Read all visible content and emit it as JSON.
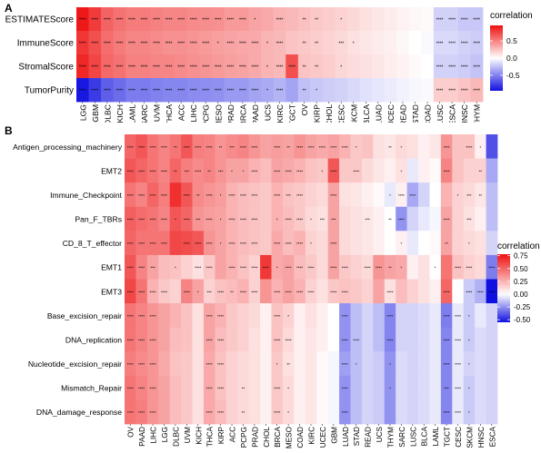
{
  "chart_data": [
    {
      "type": "heatmap",
      "panel_label": "A",
      "rows": [
        "ESTIMATEScore",
        "ImmuneScore",
        "StromalScore",
        "TumorPurity"
      ],
      "columns": [
        "LGG",
        "GBM",
        "DLBC",
        "KICH",
        "LAML",
        "SARC",
        "UVM",
        "THCA",
        "ACC",
        "LIHC",
        "PCPG",
        "MESO",
        "PRAD",
        "BRCA",
        "PAAD",
        "UCS",
        "KIRC",
        "TGCT",
        "OV",
        "KIRP",
        "CHOL",
        "CESC",
        "SKCM",
        "BLCA",
        "LUAD",
        "UCEC",
        "READ",
        "STAD",
        "COAD",
        "LUSC",
        "ESCA",
        "HNSC",
        "THYM"
      ],
      "values": [
        [
          0.92,
          0.78,
          0.62,
          0.56,
          0.52,
          0.52,
          0.5,
          0.48,
          0.48,
          0.46,
          0.45,
          0.44,
          0.4,
          0.4,
          0.36,
          0.34,
          0.3,
          0.28,
          0.25,
          0.22,
          0.2,
          0.18,
          0.15,
          0.12,
          0.1,
          0.08,
          0.05,
          0.03,
          0.02,
          -0.18,
          -0.18,
          -0.22,
          -0.22
        ],
        [
          0.8,
          0.7,
          0.58,
          0.52,
          0.48,
          0.48,
          0.46,
          0.44,
          0.44,
          0.42,
          0.4,
          0.38,
          0.36,
          0.35,
          0.34,
          0.3,
          0.28,
          0.24,
          0.22,
          0.2,
          0.18,
          0.15,
          0.12,
          0.1,
          0.08,
          0.06,
          0.03,
          0.0,
          -0.02,
          -0.15,
          -0.15,
          -0.18,
          -0.2
        ],
        [
          0.86,
          0.74,
          0.6,
          0.56,
          0.5,
          0.5,
          0.48,
          0.48,
          0.46,
          0.44,
          0.42,
          0.4,
          0.38,
          0.36,
          0.34,
          0.3,
          0.28,
          0.7,
          0.24,
          0.22,
          0.2,
          0.16,
          0.14,
          0.12,
          0.1,
          0.07,
          0.05,
          0.02,
          0.0,
          -0.18,
          -0.18,
          -0.2,
          -0.24
        ],
        [
          -0.92,
          -0.78,
          -0.64,
          -0.58,
          -0.52,
          -0.52,
          -0.5,
          -0.48,
          -0.48,
          -0.46,
          -0.45,
          -0.44,
          -0.4,
          -0.4,
          -0.36,
          -0.34,
          -0.3,
          -0.36,
          -0.25,
          -0.22,
          -0.2,
          -0.18,
          -0.15,
          -0.12,
          -0.1,
          -0.08,
          -0.05,
          -0.03,
          -0.02,
          0.2,
          0.2,
          0.24,
          0.28
        ]
      ],
      "stars": [
        [
          "****",
          "****",
          "****",
          "****",
          "****",
          "****",
          "****",
          "****",
          "****",
          "****",
          "****",
          "****",
          "****",
          "****",
          "*",
          "",
          "****",
          "",
          "**",
          "**",
          "",
          "*",
          "",
          "",
          "",
          "",
          "",
          "",
          "",
          "****",
          "****",
          "****",
          "****"
        ],
        [
          "****",
          "****",
          "****",
          "****",
          "****",
          "****",
          "****",
          "****",
          "****",
          "****",
          "****",
          "*",
          "****",
          "****",
          "****",
          "*",
          "****",
          "",
          "**",
          "**",
          "",
          "***",
          "*",
          "",
          "",
          "",
          "",
          "",
          "",
          "****",
          "****",
          "****",
          "****"
        ],
        [
          "****",
          "****",
          "****",
          "****",
          "****",
          "****",
          "****",
          "****",
          "****",
          "****",
          "****",
          "****",
          "****",
          "****",
          "****",
          "*",
          "****",
          "****",
          "**",
          "**",
          "",
          "*",
          "",
          "",
          "",
          "",
          "",
          "",
          "",
          "****",
          "****",
          "****",
          "****"
        ],
        [
          "****",
          "****",
          "****",
          "****",
          "****",
          "****",
          "****",
          "****",
          "****",
          "****",
          "****",
          "****",
          "****",
          "****",
          "****",
          "*",
          "****",
          "",
          "**",
          "*",
          "",
          "",
          "",
          "",
          "",
          "",
          "",
          "",
          "",
          "****",
          "****",
          "****",
          "****"
        ]
      ],
      "legend": {
        "title": "correlation",
        "ticks": [
          "0.5",
          "0.0",
          "-0.5"
        ],
        "range": [
          -0.95,
          0.95
        ]
      },
      "colors": {
        "low": "#1010e0",
        "mid": "#ffffff",
        "high": "#ee1010"
      }
    },
    {
      "type": "heatmap",
      "panel_label": "B",
      "rows": [
        "Antigen_processing_machinery",
        "EMT2",
        "Immune_Checkpoint",
        "Pan_F_TBRs",
        "CD_8_T_effector",
        "EMT1",
        "EMT3",
        "Base_excision_repair",
        "DNA_replication",
        "Nucleotide_excision_repair",
        "Mismatch_Repair",
        "DNA_damage_response"
      ],
      "columns": [
        "OV",
        "PAAD",
        "LIHC",
        "LGG",
        "DLBC",
        "UVM",
        "KICH",
        "THCA",
        "KIRP",
        "ACC",
        "PCPG",
        "PRAD",
        "CHOL",
        "BRCA",
        "MESO",
        "COAD",
        "KIRC",
        "UCEC",
        "GBM",
        "LUAD",
        "STAD",
        "READ",
        "UCS",
        "THYM",
        "SARC",
        "LUSC",
        "BLCA",
        "LAML",
        "TGCT",
        "CESC",
        "SKCM",
        "HNSC",
        "ESCA"
      ],
      "values": [
        [
          0.5,
          0.55,
          0.45,
          0.4,
          0.45,
          0.55,
          0.42,
          0.4,
          0.35,
          0.38,
          0.4,
          0.35,
          0.3,
          0.32,
          0.3,
          0.35,
          0.3,
          0.28,
          0.3,
          0.25,
          0.18,
          0.2,
          0.1,
          0.08,
          0.12,
          0.1,
          0.05,
          0.08,
          0.35,
          0.2,
          0.2,
          0.05,
          -0.4
        ],
        [
          0.55,
          0.5,
          0.45,
          0.4,
          0.5,
          0.42,
          0.38,
          0.4,
          0.35,
          0.3,
          0.3,
          0.25,
          0.22,
          0.3,
          0.28,
          0.25,
          0.2,
          0.18,
          0.55,
          0.18,
          0.18,
          0.12,
          0.08,
          0.05,
          0.1,
          -0.05,
          0.05,
          0.02,
          0.4,
          0.2,
          0.15,
          0.15,
          -0.2
        ],
        [
          0.45,
          0.4,
          0.5,
          0.42,
          0.68,
          0.55,
          0.38,
          0.35,
          0.32,
          0.25,
          0.22,
          0.2,
          0.18,
          0.25,
          0.2,
          0.18,
          0.15,
          0.12,
          0.3,
          0.1,
          0.08,
          0.05,
          0.02,
          -0.05,
          0.05,
          -0.2,
          -0.1,
          0.0,
          0.25,
          0.15,
          0.12,
          0.08,
          -0.15
        ],
        [
          0.52,
          0.48,
          0.45,
          0.4,
          0.55,
          0.5,
          0.35,
          0.32,
          0.3,
          0.25,
          0.22,
          0.2,
          0.18,
          0.25,
          0.22,
          0.18,
          0.12,
          0.1,
          0.3,
          0.12,
          0.1,
          0.08,
          0.05,
          0.0,
          -0.25,
          -0.1,
          -0.05,
          -0.02,
          0.3,
          0.15,
          0.1,
          0.05,
          -0.15
        ],
        [
          0.5,
          0.45,
          0.45,
          0.45,
          0.6,
          0.58,
          0.55,
          0.35,
          0.3,
          0.25,
          0.22,
          0.2,
          0.18,
          0.28,
          0.22,
          0.25,
          0.15,
          0.12,
          0.3,
          0.12,
          0.1,
          0.08,
          0.05,
          0.0,
          0.05,
          -0.05,
          0.0,
          0.02,
          0.3,
          0.15,
          0.12,
          0.1,
          -0.1
        ],
        [
          0.55,
          0.4,
          0.3,
          0.22,
          0.2,
          0.15,
          0.1,
          0.18,
          0.3,
          0.25,
          0.2,
          0.15,
          0.65,
          0.28,
          0.3,
          0.22,
          0.18,
          0.12,
          0.3,
          0.18,
          0.15,
          0.12,
          0.35,
          0.3,
          0.28,
          0.05,
          0.1,
          0.0,
          0.45,
          0.2,
          0.15,
          0.12,
          -0.3
        ],
        [
          0.6,
          0.45,
          0.25,
          0.18,
          0.15,
          0.4,
          0.3,
          0.15,
          0.2,
          0.22,
          0.25,
          0.15,
          0.35,
          0.25,
          0.3,
          0.25,
          0.15,
          0.1,
          0.18,
          0.2,
          0.18,
          0.15,
          0.3,
          0.1,
          0.22,
          0.15,
          0.1,
          0.05,
          0.5,
          0.0,
          -0.12,
          -0.18,
          -0.55
        ],
        [
          0.45,
          0.4,
          0.35,
          0.3,
          0.25,
          0.2,
          0.1,
          0.3,
          0.25,
          0.18,
          0.15,
          0.12,
          0.05,
          0.2,
          0.15,
          0.05,
          0.1,
          0.05,
          0.0,
          -0.25,
          -0.15,
          -0.1,
          -0.15,
          -0.28,
          -0.1,
          -0.1,
          -0.08,
          -0.05,
          -0.3,
          -0.05,
          -0.12,
          -0.05,
          -0.1
        ],
        [
          0.45,
          0.4,
          0.35,
          0.3,
          0.22,
          0.2,
          0.1,
          0.3,
          0.22,
          0.18,
          0.15,
          0.1,
          0.05,
          0.2,
          0.12,
          0.05,
          0.08,
          0.05,
          0.0,
          -0.25,
          -0.15,
          -0.1,
          -0.15,
          -0.28,
          -0.1,
          -0.1,
          -0.08,
          -0.05,
          -0.28,
          -0.05,
          -0.12,
          -0.08,
          -0.1
        ],
        [
          0.42,
          0.38,
          0.35,
          0.28,
          0.2,
          0.18,
          0.1,
          0.28,
          0.2,
          0.15,
          0.12,
          0.1,
          0.05,
          0.18,
          0.1,
          0.05,
          0.08,
          0.02,
          -0.02,
          -0.22,
          -0.15,
          -0.1,
          -0.12,
          -0.25,
          -0.08,
          -0.1,
          -0.08,
          -0.05,
          -0.28,
          -0.05,
          -0.1,
          -0.08,
          -0.1
        ],
        [
          0.45,
          0.4,
          0.35,
          0.3,
          0.22,
          0.18,
          0.1,
          0.28,
          0.2,
          0.15,
          0.12,
          0.1,
          0.05,
          0.18,
          0.12,
          0.05,
          0.08,
          0.02,
          -0.02,
          -0.25,
          -0.15,
          -0.1,
          -0.12,
          -0.25,
          -0.08,
          -0.1,
          -0.08,
          -0.05,
          -0.28,
          -0.05,
          -0.12,
          -0.08,
          -0.1
        ],
        [
          0.45,
          0.42,
          0.35,
          0.3,
          0.22,
          0.18,
          0.1,
          0.28,
          0.22,
          0.15,
          0.12,
          0.1,
          0.05,
          0.18,
          0.12,
          0.05,
          0.08,
          0.02,
          -0.02,
          -0.25,
          -0.15,
          -0.1,
          -0.12,
          -0.25,
          -0.08,
          -0.1,
          -0.08,
          -0.05,
          -0.28,
          -0.05,
          -0.12,
          -0.08,
          -0.1
        ]
      ],
      "stars": [
        [
          "****",
          "****",
          "****",
          "****",
          "**",
          "****",
          "****",
          "****",
          "**",
          "***",
          "****",
          "****",
          "",
          "****",
          "**",
          "****",
          "****",
          "****",
          "****",
          "****",
          "*",
          "",
          "",
          "**",
          "*",
          "",
          "",
          "",
          "****",
          "",
          "****",
          "*",
          ""
        ],
        [
          "****",
          "****",
          "****",
          "****",
          "**",
          "***",
          "****",
          "**",
          "***",
          "*",
          "*",
          "****",
          "",
          "****",
          "****",
          "****",
          "",
          "*",
          "****",
          "",
          "****",
          "",
          "",
          "",
          "*",
          "",
          "",
          "",
          "****",
          "",
          "",
          "**",
          ""
        ],
        [
          "****",
          "****",
          "****",
          "****",
          "",
          "****",
          "**",
          "****",
          "*",
          "****",
          "****",
          "****",
          "",
          "****",
          "***",
          "****",
          "",
          "",
          "****",
          "",
          "",
          "",
          "",
          "*",
          "****",
          "****",
          "",
          "",
          "",
          "*",
          "***",
          "**",
          ""
        ],
        [
          "****",
          "****",
          "****",
          "****",
          "*",
          "****",
          "***",
          "****",
          "*",
          "****",
          "****",
          "****",
          "",
          "*",
          "****",
          "****",
          "*",
          "***",
          "***",
          "",
          "",
          "***",
          "",
          "**",
          "****",
          "",
          "",
          "",
          "****",
          "",
          "***",
          "",
          ""
        ],
        [
          "****",
          "****",
          "****",
          "****",
          "",
          "****",
          "****",
          "****",
          "*",
          "****",
          "****",
          "****",
          "",
          "****",
          "****",
          "****",
          "*",
          "",
          "****",
          "",
          "",
          "",
          "",
          "",
          "*",
          "",
          "",
          "",
          "**",
          "",
          "*",
          "",
          ""
        ],
        [
          "****",
          "****",
          "***",
          "",
          "*",
          "",
          "****",
          "****",
          "",
          "****",
          "****",
          "****",
          "****",
          "*",
          "****",
          "****",
          "****",
          "",
          "****",
          "****",
          "",
          "****",
          "****",
          "**",
          "*",
          "",
          "",
          "*",
          "",
          "****",
          "****",
          "",
          "****"
        ],
        [
          "****",
          "****",
          "****",
          "****",
          "",
          "****",
          "*",
          "***",
          "****",
          "**",
          "****",
          "****",
          "",
          "****",
          "****",
          "****",
          "****",
          "",
          "****",
          "****",
          "",
          "",
          "",
          "****",
          "",
          "",
          "",
          "",
          "****",
          "",
          "****",
          "****",
          "****"
        ],
        [
          "****",
          "****",
          "****",
          "",
          "",
          "",
          "",
          "****",
          "****",
          "",
          "",
          "",
          "",
          "****",
          "*",
          "",
          "",
          "",
          "",
          "****",
          "",
          "",
          "",
          "****",
          "",
          "",
          "",
          "",
          "****",
          "****",
          "*",
          "",
          ""
        ],
        [
          "****",
          "****",
          "****",
          "",
          "",
          "",
          "",
          "****",
          "****",
          "",
          "",
          "",
          "",
          "****",
          "****",
          "",
          "",
          "",
          "",
          "****",
          "****",
          "",
          "",
          "****",
          "",
          "",
          "",
          "",
          "****",
          "****",
          "*",
          "",
          ""
        ],
        [
          "****",
          "****",
          "****",
          "",
          "",
          "",
          "",
          "****",
          "****",
          "",
          "",
          "",
          "",
          "*",
          "**",
          "",
          "",
          "",
          "",
          "****",
          "*",
          "",
          "",
          "*",
          "",
          "",
          "",
          "",
          "****",
          "****",
          "*",
          "",
          ""
        ],
        [
          "****",
          "****",
          "****",
          "",
          "",
          "",
          "",
          "****",
          "****",
          "",
          "**",
          "",
          "",
          "****",
          "*",
          "",
          "",
          "",
          "",
          "****",
          "",
          "",
          "",
          "*",
          "",
          "",
          "",
          "",
          "***",
          "****",
          "*",
          "",
          ""
        ],
        [
          "****",
          "****",
          "****",
          "",
          "",
          "",
          "",
          "****",
          "****",
          "",
          "**",
          "",
          "",
          "****",
          "*",
          "",
          "",
          "",
          "",
          "****",
          "",
          "",
          "",
          "",
          "",
          "",
          "",
          "",
          "****",
          "****",
          "*",
          "",
          ""
        ]
      ],
      "legend": {
        "title": "correlation",
        "ticks": [
          "0.75",
          "0.50",
          "0.25",
          "0.00",
          "-0.25",
          "-0.50"
        ],
        "range": [
          -0.55,
          0.78
        ]
      },
      "colors": {
        "low": "#1010e0",
        "mid": "#ffffff",
        "high": "#ee1010"
      }
    }
  ]
}
